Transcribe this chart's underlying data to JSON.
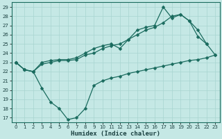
{
  "xlabel": "Humidex (Indice chaleur)",
  "bg_color": "#c5e8e5",
  "grid_color": "#a8d4d0",
  "line_color": "#1a6b5e",
  "xlim": [
    -0.5,
    23.5
  ],
  "ylim": [
    16.5,
    29.5
  ],
  "yticks": [
    17,
    18,
    19,
    20,
    21,
    22,
    23,
    24,
    25,
    26,
    27,
    28,
    29
  ],
  "xticks": [
    0,
    1,
    2,
    3,
    4,
    5,
    6,
    7,
    8,
    9,
    10,
    11,
    12,
    13,
    14,
    15,
    16,
    17,
    18,
    19,
    20,
    21,
    22,
    23
  ],
  "line_upper_x": [
    0,
    1,
    2,
    3,
    4,
    5,
    6,
    7,
    8,
    9,
    10,
    11,
    12,
    13,
    14,
    15,
    16,
    17,
    18,
    19,
    20,
    21,
    22
  ],
  "line_upper_y": [
    23.0,
    22.2,
    22.0,
    23.0,
    23.2,
    23.3,
    23.3,
    23.5,
    24.0,
    24.5,
    24.8,
    25.0,
    24.5,
    25.5,
    26.5,
    26.8,
    27.0,
    29.0,
    27.8,
    28.2,
    27.5,
    25.8,
    25.0
  ],
  "line_mid_x": [
    0,
    1,
    2,
    3,
    4,
    5,
    6,
    7,
    8,
    9,
    10,
    11,
    12,
    13,
    14,
    15,
    16,
    17,
    18,
    19,
    20,
    21,
    22,
    23
  ],
  "line_mid_y": [
    23.0,
    22.2,
    22.0,
    22.8,
    23.0,
    23.2,
    23.2,
    23.3,
    23.8,
    24.0,
    24.5,
    24.8,
    25.0,
    25.5,
    26.0,
    26.5,
    26.8,
    27.3,
    28.0,
    28.2,
    27.5,
    26.5,
    25.0,
    23.8
  ],
  "line_lower_x": [
    0,
    1,
    2,
    3,
    4,
    5,
    6,
    7,
    8,
    9,
    10,
    11,
    12,
    13,
    14,
    15,
    16,
    17,
    18,
    19,
    20,
    21,
    22,
    23
  ],
  "line_lower_y": [
    23.0,
    22.2,
    22.0,
    20.2,
    18.7,
    18.0,
    16.8,
    17.0,
    18.0,
    20.5,
    21.0,
    21.3,
    21.5,
    21.8,
    22.0,
    22.2,
    22.4,
    22.6,
    22.8,
    23.0,
    23.2,
    23.3,
    23.5,
    23.8
  ],
  "markersize": 2.5,
  "linewidth": 0.9,
  "xlabel_fontsize": 6.5,
  "tick_fontsize": 5.0
}
